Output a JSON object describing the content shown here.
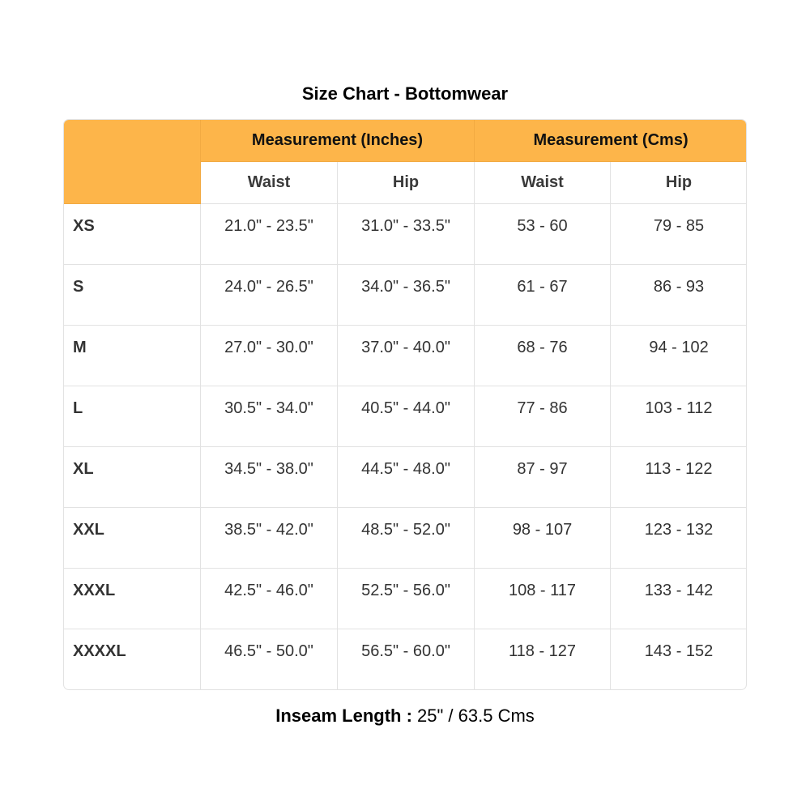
{
  "title": "Size Chart - Bottomwear",
  "header": {
    "groups": [
      "Measurement (Inches)",
      "Measurement (Cms)"
    ],
    "subheaders": [
      "Waist",
      "Hip",
      "Waist",
      "Hip"
    ]
  },
  "rows": [
    {
      "size": "XS",
      "in_waist": "21.0\" - 23.5\"",
      "in_hip": "31.0\" - 33.5\"",
      "cm_waist": "53 - 60",
      "cm_hip": "79 - 85"
    },
    {
      "size": "S",
      "in_waist": "24.0\" - 26.5\"",
      "in_hip": "34.0\" - 36.5\"",
      "cm_waist": "61 - 67",
      "cm_hip": "86 - 93"
    },
    {
      "size": "M",
      "in_waist": "27.0\" - 30.0\"",
      "in_hip": "37.0\" - 40.0\"",
      "cm_waist": "68 - 76",
      "cm_hip": "94 - 102"
    },
    {
      "size": "L",
      "in_waist": "30.5\" - 34.0\"",
      "in_hip": "40.5\" - 44.0\"",
      "cm_waist": "77 - 86",
      "cm_hip": "103 - 112"
    },
    {
      "size": "XL",
      "in_waist": "34.5\" - 38.0\"",
      "in_hip": "44.5\" - 48.0\"",
      "cm_waist": "87 - 97",
      "cm_hip": "113 - 122"
    },
    {
      "size": "XXL",
      "in_waist": "38.5\" - 42.0\"",
      "in_hip": "48.5\" - 52.0\"",
      "cm_waist": "98 - 107",
      "cm_hip": "123 - 132"
    },
    {
      "size": "XXXL",
      "in_waist": "42.5\" - 46.0\"",
      "in_hip": "52.5\" - 56.0\"",
      "cm_waist": "108 - 117",
      "cm_hip": "133 - 142"
    },
    {
      "size": "XXXXL",
      "in_waist": "46.5\" - 50.0\"",
      "in_hip": "56.5\" - 60.0\"",
      "cm_waist": "118 - 127",
      "cm_hip": "143 - 152"
    }
  ],
  "footer": {
    "label": "Inseam Length :",
    "value": " 25\" / 63.5 Cms"
  },
  "colors": {
    "header_accent": "#FDB54A"
  }
}
